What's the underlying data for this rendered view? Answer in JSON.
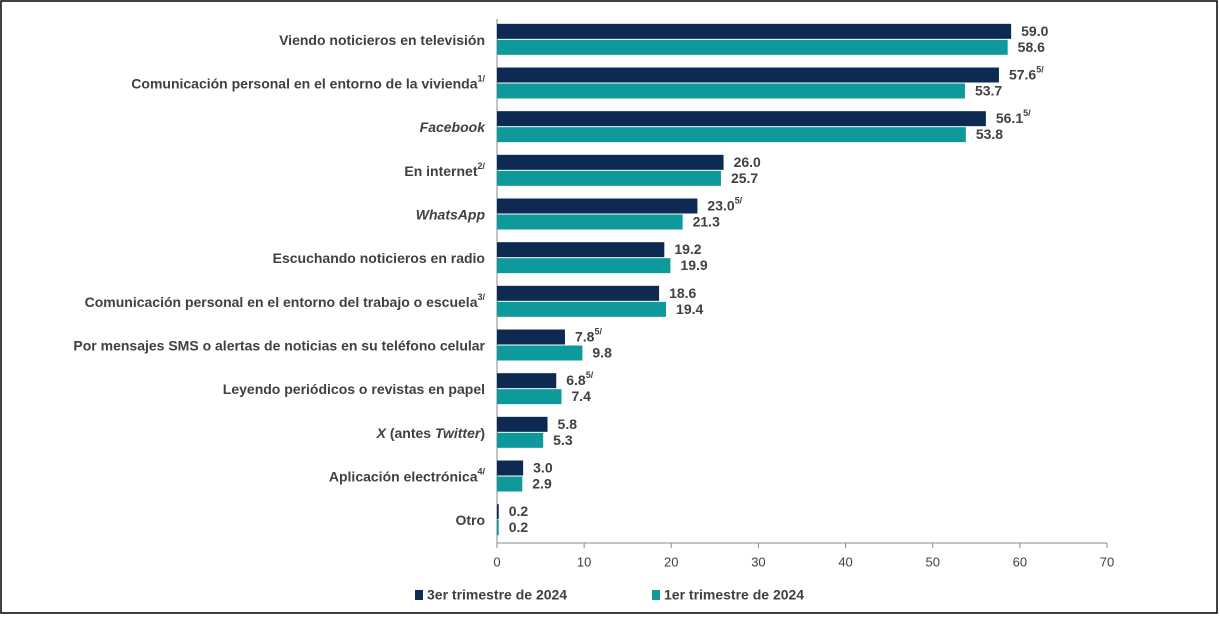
{
  "chart_data": {
    "type": "hbar",
    "categories": [
      {
        "parts": [
          {
            "text": "Viendo noticieros en televisión",
            "italic": false
          }
        ]
      },
      {
        "parts": [
          {
            "text": "Comunicación personal en el entorno de la vivienda",
            "italic": false
          }
        ],
        "note": "1/"
      },
      {
        "parts": [
          {
            "text": "Facebook",
            "italic": true
          }
        ]
      },
      {
        "parts": [
          {
            "text": "En internet",
            "italic": false
          }
        ],
        "note": "2/"
      },
      {
        "parts": [
          {
            "text": "WhatsApp",
            "italic": true
          }
        ]
      },
      {
        "parts": [
          {
            "text": "Escuchando noticieros en radio",
            "italic": false
          }
        ]
      },
      {
        "parts": [
          {
            "text": "Comunicación personal en el entorno del trabajo o escuela",
            "italic": false
          }
        ],
        "note": "3/"
      },
      {
        "parts": [
          {
            "text": "Por mensajes SMS o alertas de noticias en su teléfono celular",
            "italic": false
          }
        ]
      },
      {
        "parts": [
          {
            "text": "Leyendo periódicos o revistas en papel",
            "italic": false
          }
        ]
      },
      {
        "parts": [
          {
            "text": "X",
            "italic": true
          },
          {
            "text": " (antes ",
            "italic": false
          },
          {
            "text": "Twitter",
            "italic": true
          },
          {
            "text": ")",
            "italic": false
          }
        ]
      },
      {
        "parts": [
          {
            "text": "Aplicación electrónica",
            "italic": false
          }
        ],
        "note": "4/"
      },
      {
        "parts": [
          {
            "text": "Otro",
            "italic": false
          }
        ]
      }
    ],
    "series": [
      {
        "name": "3er trimestre de 2024",
        "color": "#0d2b52",
        "values": [
          59.0,
          57.6,
          56.1,
          26.0,
          23.0,
          19.2,
          18.6,
          7.8,
          6.8,
          5.8,
          3.0,
          0.2
        ],
        "value_labels": [
          "59.0",
          "57.6",
          "56.1",
          "26.0",
          "23.0",
          "19.2",
          "18.6",
          "7.8",
          "6.8",
          "5.8",
          "3.0",
          "0.2"
        ],
        "value_notes": [
          null,
          "5/",
          "5/",
          null,
          "5/",
          null,
          null,
          "5/",
          "5/",
          null,
          null,
          null
        ]
      },
      {
        "name": "1er trimestre de 2024",
        "color": "#0e9a9a",
        "values": [
          58.6,
          53.7,
          53.8,
          25.7,
          21.3,
          19.9,
          19.4,
          9.8,
          7.4,
          5.3,
          2.9,
          0.2
        ],
        "value_labels": [
          "58.6",
          "53.7",
          "53.8",
          "25.7",
          "21.3",
          "19.9",
          "19.4",
          "9.8",
          "7.4",
          "5.3",
          "2.9",
          "0.2"
        ]
      }
    ],
    "xlim": [
      0,
      70
    ],
    "xticks": [
      0,
      10,
      20,
      30,
      40,
      50,
      60,
      70
    ],
    "legend": "bottom"
  }
}
